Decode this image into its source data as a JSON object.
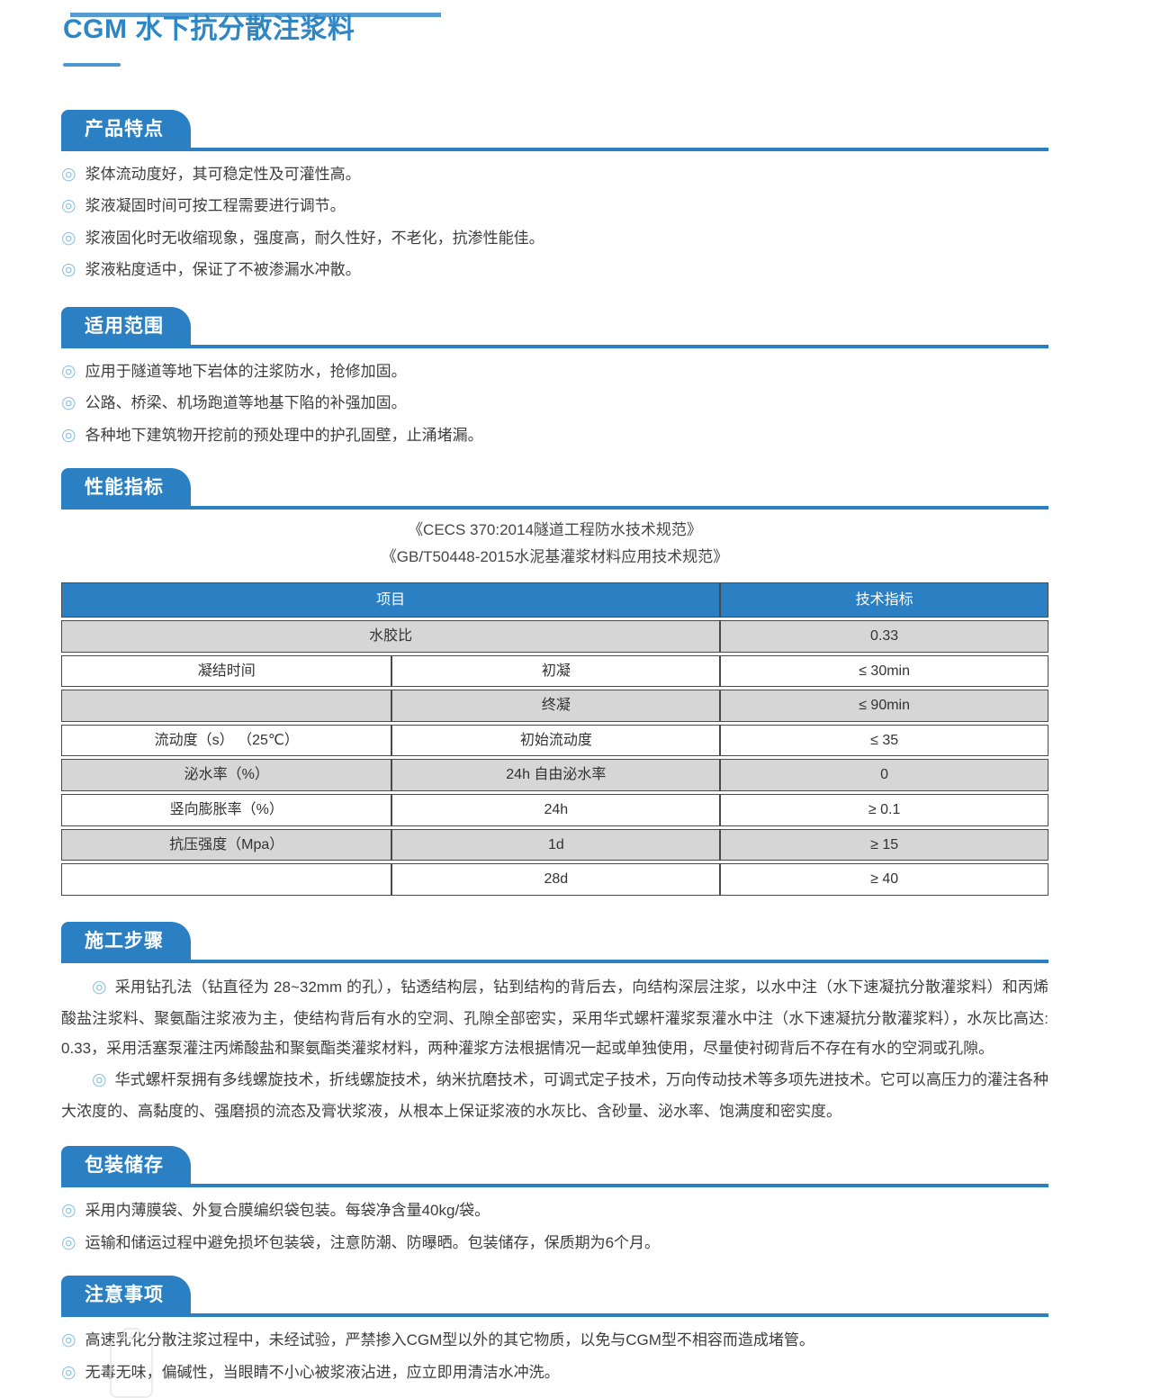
{
  "page": {
    "title": "CGM 水下抗分散注浆料",
    "bullet_glyph": "◎",
    "colors": {
      "accent_blue": "#2b80c4",
      "title_blue": "#2e86c5",
      "table_shade_gray": "#d6d6d6",
      "bullet_light_blue": "#8fc2e2",
      "table_border": "#4a4a4a"
    }
  },
  "sections": {
    "features": {
      "heading": "产品特点",
      "items": [
        "浆体流动度好，其可稳定性及可灌性高。",
        "浆液凝固时间可按工程需要进行调节。",
        "浆液固化时无收缩现象，强度高，耐久性好，不老化，抗渗性能佳。",
        "浆液粘度适中，保证了不被渗漏水冲散。"
      ]
    },
    "scope": {
      "heading": "适用范围",
      "items": [
        "应用于隧道等地下岩体的注浆防水，抢修加固。",
        "公路、桥梁、机场跑道等地基下陷的补强加固。",
        "各种地下建筑物开挖前的预处理中的护孔固壁，止涌堵漏。"
      ]
    },
    "performance": {
      "heading": "性能指标",
      "references": [
        "《CECS 370:2014隧道工程防水技术规范》",
        "《GB/T50448-2015水泥基灌浆材料应用技术规范》"
      ],
      "table": {
        "header": [
          "项目",
          "技术指标"
        ],
        "rows": [
          {
            "cells": [
              {
                "t": "水胶比",
                "span": 2
              },
              {
                "t": "0.33"
              }
            ]
          },
          {
            "cells": [
              {
                "t": "凝结时间"
              },
              {
                "t": "初凝"
              },
              {
                "t": "≤ 30min"
              }
            ]
          },
          {
            "cells": [
              {
                "t": ""
              },
              {
                "t": "终凝"
              },
              {
                "t": "≤ 90min"
              }
            ]
          },
          {
            "cells": [
              {
                "t": "流动度（s） （25℃）"
              },
              {
                "t": "初始流动度"
              },
              {
                "t": "≤ 35"
              }
            ]
          },
          {
            "cells": [
              {
                "t": "泌水率（%）"
              },
              {
                "t": "24h 自由泌水率"
              },
              {
                "t": "0"
              }
            ]
          },
          {
            "cells": [
              {
                "t": "竖向膨胀率（%）"
              },
              {
                "t": "24h"
              },
              {
                "t": "≥ 0.1"
              }
            ]
          },
          {
            "cells": [
              {
                "t": "抗压强度（Mpa）"
              },
              {
                "t": "1d"
              },
              {
                "t": "≥ 15"
              }
            ]
          },
          {
            "cells": [
              {
                "t": ""
              },
              {
                "t": "28d"
              },
              {
                "t": "≥ 40"
              }
            ]
          }
        ]
      }
    },
    "construction": {
      "heading": "施工步骤",
      "paragraphs": [
        "采用钻孔法（钻直径为 28~32mm 的孔），钻透结构层，钻到结构的背后去，向结构深层注浆，以水中注（水下速凝抗分散灌浆料）和丙烯酸盐注浆料、聚氨酯注浆液为主，使结构背后有水的空洞、孔隙全部密实，采用华式螺杆灌浆泵灌水中注（水下速凝抗分散灌浆料），水灰比高达: 0.33，采用活塞泵灌注丙烯酸盐和聚氨酯类灌浆材料，两种灌浆方法根据情况一起或单独使用，尽量使衬砌背后不存在有水的空洞或孔隙。",
        "华式螺杆泵拥有多线螺旋技术，折线螺旋技术，纳米抗磨技术，可调式定子技术，万向传动技术等多项先进技术。它可以高压力的灌注各种大浓度的、高黏度的、强磨损的流态及膏状浆液，从根本上保证浆液的水灰比、含砂量、泌水率、饱满度和密实度。"
      ]
    },
    "packaging": {
      "heading": "包装储存",
      "items": [
        "采用内薄膜袋、外复合膜编织袋包装。每袋净含量40kg/袋。",
        "运输和储运过程中避免损坏包装袋，注意防潮、防曝晒。包装储存，保质期为6个月。"
      ]
    },
    "notes": {
      "heading": "注意事项",
      "items": [
        "高速乳化分散注浆过程中，未经试验，严禁掺入CGM型以外的其它物质，以免与CGM型不相容而造成堵管。",
        "无毒无味，偏碱性，当眼睛不小心被浆液沾进，应立即用清洁水冲洗。"
      ]
    }
  }
}
